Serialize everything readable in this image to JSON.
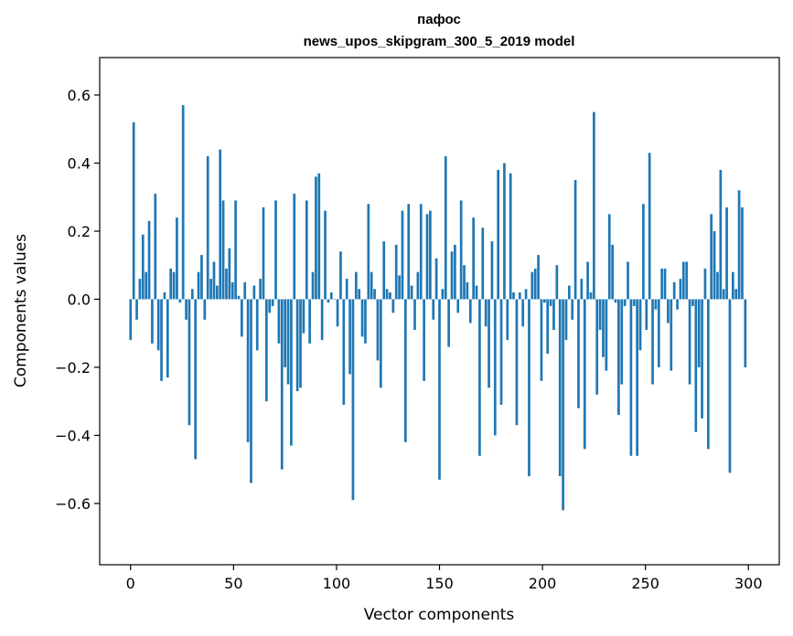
{
  "chart_data": {
    "type": "bar",
    "title": "пафос",
    "subtitle": "news_upos_skipgram_300_5_2019 model",
    "xlabel": "Vector components",
    "ylabel": "Components values",
    "xlim": [
      -15,
      315
    ],
    "ylim": [
      -0.78,
      0.71
    ],
    "xticks": [
      0,
      50,
      100,
      150,
      200,
      250,
      300
    ],
    "xtick_labels": [
      "0",
      "50",
      "100",
      "150",
      "200",
      "250",
      "300"
    ],
    "yticks": [
      -0.6,
      -0.4,
      -0.2,
      0.0,
      0.2,
      0.4,
      0.6
    ],
    "ytick_labels": [
      "−0.6",
      "−0.4",
      "−0.2",
      "0.0",
      "0.2",
      "0.4",
      "0.6"
    ],
    "grid": false,
    "bar_color": "#1f77b4",
    "values": [
      -0.12,
      0.52,
      -0.06,
      0.06,
      0.19,
      0.08,
      0.23,
      -0.13,
      0.31,
      -0.15,
      -0.24,
      0.02,
      -0.23,
      0.09,
      0.08,
      0.24,
      -0.01,
      0.57,
      -0.06,
      -0.37,
      0.03,
      -0.47,
      0.08,
      0.13,
      -0.06,
      0.42,
      0.06,
      0.11,
      0.04,
      0.44,
      0.29,
      0.09,
      0.15,
      0.05,
      0.29,
      0.01,
      -0.11,
      0.05,
      -0.42,
      -0.54,
      0.04,
      -0.15,
      0.06,
      0.27,
      -0.3,
      -0.04,
      -0.02,
      0.29,
      -0.13,
      -0.5,
      -0.2,
      -0.25,
      -0.43,
      0.31,
      -0.27,
      -0.26,
      -0.1,
      0.29,
      -0.13,
      0.08,
      0.36,
      0.37,
      -0.12,
      0.26,
      -0.01,
      0.02,
      0.0,
      -0.08,
      0.14,
      -0.31,
      0.06,
      -0.22,
      -0.59,
      0.08,
      0.03,
      -0.11,
      -0.13,
      0.28,
      0.08,
      0.03,
      -0.18,
      -0.26,
      0.17,
      0.03,
      0.02,
      -0.04,
      0.16,
      0.07,
      0.26,
      -0.42,
      0.28,
      0.04,
      -0.09,
      0.08,
      0.28,
      -0.24,
      0.25,
      0.26,
      -0.06,
      0.12,
      -0.53,
      0.03,
      0.42,
      -0.14,
      0.14,
      0.16,
      -0.04,
      0.29,
      0.1,
      0.05,
      -0.07,
      0.24,
      0.04,
      -0.46,
      0.21,
      -0.08,
      -0.26,
      0.17,
      -0.4,
      0.38,
      -0.31,
      0.4,
      -0.12,
      0.37,
      0.02,
      -0.37,
      0.02,
      -0.08,
      0.03,
      -0.52,
      0.08,
      0.09,
      0.13,
      -0.24,
      -0.01,
      -0.16,
      -0.02,
      -0.09,
      0.1,
      -0.52,
      -0.62,
      -0.12,
      0.04,
      -0.06,
      0.35,
      -0.32,
      0.06,
      -0.44,
      0.11,
      0.02,
      0.55,
      -0.28,
      -0.09,
      -0.17,
      -0.21,
      0.25,
      0.16,
      -0.01,
      -0.34,
      -0.25,
      -0.02,
      0.11,
      -0.46,
      -0.02,
      -0.46,
      -0.15,
      0.28,
      -0.09,
      0.43,
      -0.25,
      -0.03,
      -0.2,
      0.09,
      0.09,
      -0.07,
      -0.21,
      0.05,
      -0.03,
      0.06,
      0.11,
      0.11,
      -0.25,
      -0.02,
      -0.39,
      -0.2,
      -0.35,
      0.09,
      -0.44,
      0.25,
      0.2,
      0.08,
      0.38,
      0.03,
      0.27,
      -0.51,
      0.08,
      0.03,
      0.32,
      0.27,
      -0.2
    ]
  }
}
